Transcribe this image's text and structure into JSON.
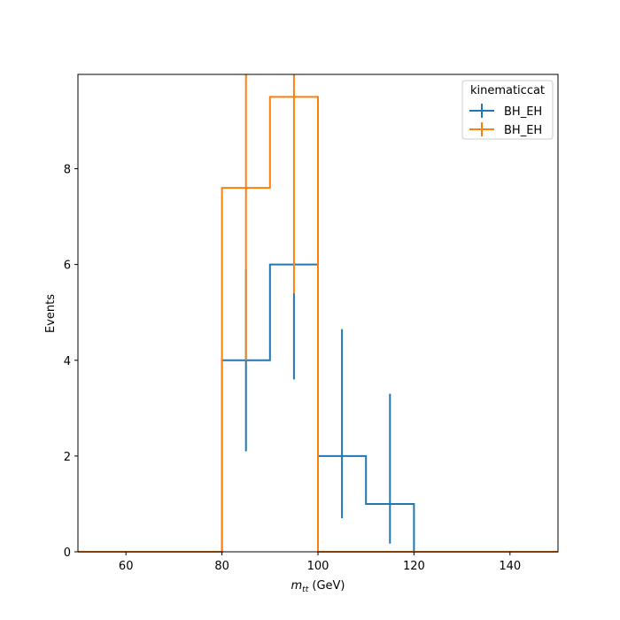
{
  "chart_data": {
    "type": "histogram-step",
    "xlabel_main": "m",
    "xlabel_sub": "tt",
    "xlabel_unit": " (GeV)",
    "ylabel": "Events",
    "xlim": [
      50,
      150
    ],
    "ylim": [
      0,
      9.97
    ],
    "xticks": [
      60,
      80,
      100,
      120,
      140
    ],
    "yticks": [
      0,
      2,
      4,
      6,
      8
    ],
    "grid": false,
    "legend": {
      "title": "kinematiccat",
      "placement": "top-right",
      "entries": [
        "BH_EH",
        "BH_EH"
      ]
    },
    "bin_edges": [
      50,
      60,
      70,
      80,
      90,
      100,
      110,
      120,
      130,
      140,
      150
    ],
    "series": [
      {
        "name": "BH_EH",
        "color": "#1f77b4",
        "values": [
          0,
          0,
          0,
          4,
          6,
          2,
          1,
          0,
          0,
          0
        ],
        "errors": [
          {
            "x": 85,
            "low": 2.1,
            "high": 5.9
          },
          {
            "x": 95,
            "low": 3.6,
            "high": 5.4
          },
          {
            "x": 105,
            "low": 0.7,
            "high": 4.65
          },
          {
            "x": 115,
            "low": 0.17,
            "high": 3.3
          }
        ]
      },
      {
        "name": "BH_EH",
        "color": "#ff7f0e",
        "values": [
          0,
          0,
          0,
          7.6,
          9.5,
          0,
          0,
          0,
          0,
          0
        ],
        "errors": [
          {
            "x": 85,
            "low": 4.0,
            "high": 9.97
          },
          {
            "x": 95,
            "low": 5.4,
            "high": 9.97
          }
        ]
      }
    ]
  }
}
